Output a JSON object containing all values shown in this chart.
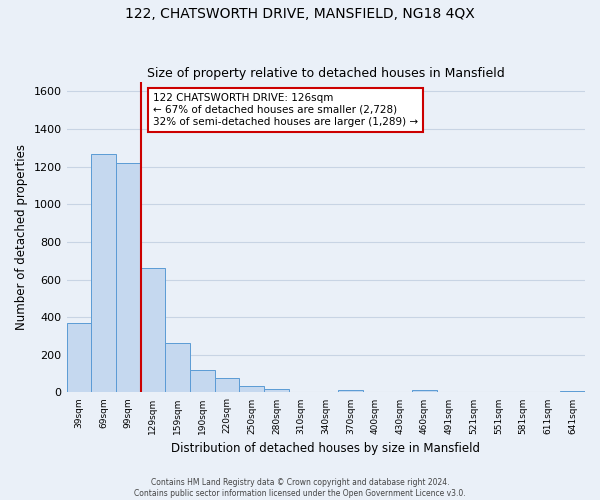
{
  "title": "122, CHATSWORTH DRIVE, MANSFIELD, NG18 4QX",
  "subtitle": "Size of property relative to detached houses in Mansfield",
  "xlabel": "Distribution of detached houses by size in Mansfield",
  "ylabel": "Number of detached properties",
  "bar_labels": [
    "39sqm",
    "69sqm",
    "99sqm",
    "129sqm",
    "159sqm",
    "190sqm",
    "220sqm",
    "250sqm",
    "280sqm",
    "310sqm",
    "340sqm",
    "370sqm",
    "400sqm",
    "430sqm",
    "460sqm",
    "491sqm",
    "521sqm",
    "551sqm",
    "581sqm",
    "611sqm",
    "641sqm"
  ],
  "bar_values": [
    370,
    1270,
    1220,
    660,
    265,
    120,
    75,
    35,
    20,
    0,
    0,
    15,
    0,
    0,
    12,
    0,
    0,
    0,
    0,
    0,
    10
  ],
  "bar_color": "#c5d8ef",
  "bar_edge_color": "#5b9bd5",
  "annotation_text_line1": "122 CHATSWORTH DRIVE: 126sqm",
  "annotation_text_line2": "← 67% of detached houses are smaller (2,728)",
  "annotation_text_line3": "32% of semi-detached houses are larger (1,289) →",
  "annotation_box_color": "#ffffff",
  "annotation_box_edge_color": "#cc0000",
  "red_line_color": "#cc0000",
  "ylim": [
    0,
    1650
  ],
  "yticks": [
    0,
    200,
    400,
    600,
    800,
    1000,
    1200,
    1400,
    1600
  ],
  "footer_line1": "Contains HM Land Registry data © Crown copyright and database right 2024.",
  "footer_line2": "Contains public sector information licensed under the Open Government Licence v3.0.",
  "bg_color": "#eaf0f8",
  "plot_bg_color": "#eaf0f8",
  "grid_color": "#c8d4e4"
}
